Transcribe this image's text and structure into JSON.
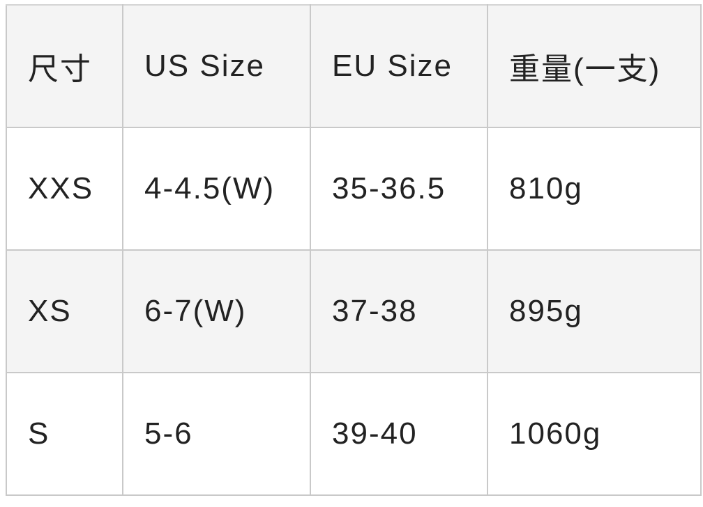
{
  "table": {
    "headers": [
      "尺寸",
      "US Size",
      "EU Size",
      "重量(一支)"
    ],
    "rows": [
      [
        "XXS",
        "4-4.5(W)",
        "35-36.5",
        "810g"
      ],
      [
        "XS",
        "6-7(W)",
        "37-38",
        "895g"
      ],
      [
        "S",
        "5-6",
        "39-40",
        "1060g"
      ]
    ]
  }
}
